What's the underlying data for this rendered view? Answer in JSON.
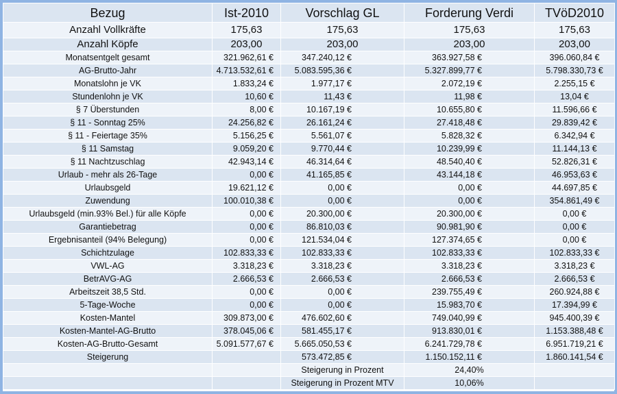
{
  "table": {
    "header": [
      "Bezug",
      "Ist-2010",
      "Vorschlag GL",
      "Forderung Verdi",
      "TVöD2010"
    ],
    "big_rows": [
      {
        "label": "Anzahl Vollkräfte",
        "values": [
          "175,63",
          "175,63",
          "175,63",
          "175,63"
        ]
      },
      {
        "label": "Anzahl Köpfe",
        "values": [
          "203,00",
          "203,00",
          "203,00",
          "203,00"
        ]
      }
    ],
    "rows": [
      {
        "label": "Monatsentgelt gesamt",
        "values": [
          "321.962,61 €",
          "347.240,12 €",
          "363.927,58 €",
          "396.060,84 €"
        ]
      },
      {
        "label": "AG-Brutto-Jahr",
        "values": [
          "4.713.532,61 €",
          "5.083.595,36 €",
          "5.327.899,77 €",
          "5.798.330,73 €"
        ]
      },
      {
        "label": "Monatslohn je VK",
        "values": [
          "1.833,24 €",
          "1.977,17 €",
          "2.072,19 €",
          "2.255,15 €"
        ]
      },
      {
        "label": "Stundenlohn je VK",
        "values": [
          "10,60 €",
          "11,43 €",
          "11,98 €",
          "13,04 €"
        ]
      },
      {
        "label": "§ 7 Überstunden",
        "values": [
          "8,00 €",
          "10.167,19 €",
          "10.655,80 €",
          "11.596,66 €"
        ]
      },
      {
        "label": "§ 11 - Sonntag 25%",
        "values": [
          "24.256,82 €",
          "26.161,24 €",
          "27.418,48 €",
          "29.839,42 €"
        ]
      },
      {
        "label": "§ 11 - Feiertage 35%",
        "values": [
          "5.156,25 €",
          "5.561,07 €",
          "5.828,32 €",
          "6.342,94 €"
        ]
      },
      {
        "label": "§ 11 Samstag",
        "values": [
          "9.059,20 €",
          "9.770,44 €",
          "10.239,99 €",
          "11.144,13 €"
        ]
      },
      {
        "label": "§ 11 Nachtzuschlag",
        "values": [
          "42.943,14 €",
          "46.314,64 €",
          "48.540,40 €",
          "52.826,31 €"
        ]
      },
      {
        "label": "Urlaub - mehr als 26-Tage",
        "values": [
          "0,00 €",
          "41.165,85 €",
          "43.144,18 €",
          "46.953,63 €"
        ]
      },
      {
        "label": "Urlaubsgeld",
        "values": [
          "19.621,12 €",
          "0,00 €",
          "0,00 €",
          "44.697,85 €"
        ]
      },
      {
        "label": "Zuwendung",
        "values": [
          "100.010,38 €",
          "0,00 €",
          "0,00 €",
          "354.861,49 €"
        ]
      },
      {
        "label": "Urlaubsgeld (min.93% Bel.) für alle Köpfe",
        "values": [
          "0,00 €",
          "20.300,00 €",
          "20.300,00 €",
          "0,00 €"
        ]
      },
      {
        "label": "Garantiebetrag",
        "values": [
          "0,00 €",
          "86.810,03 €",
          "90.981,90 €",
          "0,00 €"
        ]
      },
      {
        "label": "Ergebnisanteil (94% Belegung)",
        "values": [
          "0,00 €",
          "121.534,04 €",
          "127.374,65 €",
          "0,00 €"
        ]
      },
      {
        "label": "Schichtzulage",
        "values": [
          "102.833,33 €",
          "102.833,33 €",
          "102.833,33 €",
          "102.833,33 €"
        ]
      },
      {
        "label": "VWL-AG",
        "values": [
          "3.318,23 €",
          "3.318,23 €",
          "3.318,23 €",
          "3.318,23 €"
        ]
      },
      {
        "label": "BetrAVG-AG",
        "values": [
          "2.666,53 €",
          "2.666,53 €",
          "2.666,53 €",
          "2.666,53 €"
        ]
      },
      {
        "label": "Arbeitszeit 38,5 Std.",
        "values": [
          "0,00 €",
          "0,00 €",
          "239.755,49 €",
          "260.924,88 €"
        ]
      },
      {
        "label": "5-Tage-Woche",
        "values": [
          "0,00 €",
          "0,00 €",
          "15.983,70 €",
          "17.394,99 €"
        ]
      },
      {
        "label": "Kosten-Mantel",
        "values": [
          "309.873,00 €",
          "476.602,60 €",
          "749.040,99 €",
          "945.400,39 €"
        ]
      },
      {
        "label": "Kosten-Mantel-AG-Brutto",
        "values": [
          "378.045,06 €",
          "581.455,17 €",
          "913.830,01 €",
          "1.153.388,48 €"
        ]
      },
      {
        "label": "Kosten-AG-Brutto-Gesamt",
        "values": [
          "5.091.577,67 €",
          "5.665.050,53 €",
          "6.241.729,78 €",
          "6.951.719,21 €"
        ]
      },
      {
        "label": "Steigerung",
        "values": [
          null,
          "573.472,85 €",
          "1.150.152,11 €",
          "1.860.141,54 €"
        ]
      }
    ],
    "footer_rows": [
      {
        "label": "Steigerung in Prozent",
        "value": "24,40%"
      },
      {
        "label": "Steigerung in Prozent MTV",
        "value": "10,06%"
      }
    ]
  }
}
